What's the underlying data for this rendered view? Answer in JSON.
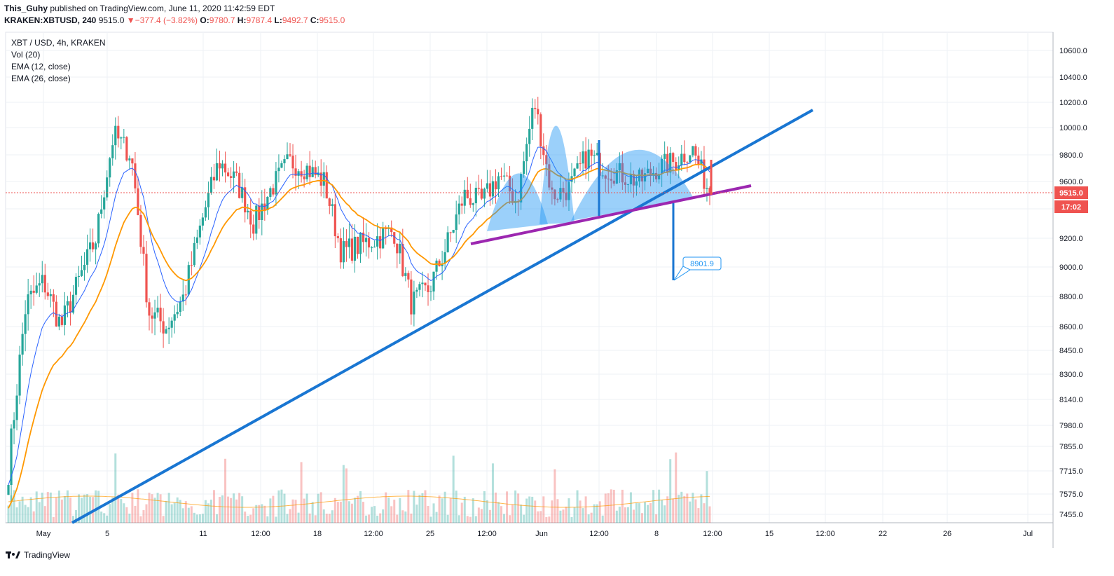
{
  "header": {
    "user": "This_Guhy",
    "published": " published on TradingView.com, June 11, 2020 11:42:59 EDT",
    "symbol": "KRAKEN:XBTUSD, 240",
    "last": "9515.0",
    "change": "−377.4 (−3.82%)",
    "o_label": "O:",
    "o_val": "9780.7",
    "h_label": "H:",
    "h_val": "9787.4",
    "l_label": "L:",
    "l_val": "9492.7",
    "c_label": "C:",
    "c_val": "9515.0"
  },
  "legend": {
    "line1": "XBT / USD, 4h, KRAKEN",
    "line2": "Vol (20)",
    "line3": "EMA (12, close)",
    "line4": "EMA (26, close)"
  },
  "footer": {
    "brand": "TradingView"
  },
  "chart_data": {
    "type": "candlestick",
    "title": "XBT / USD, 4h, KRAKEN",
    "price_ticks": [
      10600.0,
      10400.0,
      10200.0,
      10000.0,
      9800.0,
      9600.0,
      9400.0,
      9200.0,
      9000.0,
      8800.0,
      8600.0,
      8450.0,
      8300.0,
      8140.0,
      7980.0,
      7855.0,
      7715.0,
      7575.0,
      7455.0
    ],
    "x_ticks": [
      "May",
      "5",
      "11",
      "12:00",
      "18",
      "12:00",
      "25",
      "12:00",
      "Jun",
      "12:00",
      "8",
      "12:00",
      "15",
      "12:00",
      "22",
      "26",
      "Jul"
    ],
    "last_price_label": "9515.0",
    "countdown_label": "17:02",
    "target_label": "8901.9",
    "colors": {
      "up": "#26a69a",
      "down": "#ef5350",
      "ema12": "#2962ff",
      "ema26": "#ff9800",
      "trendline": "#1976d2",
      "neckline": "#9c27b0",
      "pattern": "#2196f3"
    },
    "price_path": [
      [
        "Apr 30",
        7720
      ],
      [
        "May 1",
        8750
      ],
      [
        "May 2",
        8900
      ],
      [
        "May 4",
        8600
      ],
      [
        "May 5",
        8900
      ],
      [
        "May 7",
        9200
      ],
      [
        "May 8",
        9950
      ],
      [
        "May 9",
        9800
      ],
      [
        "May 10",
        8700
      ],
      [
        "May 11",
        8600
      ],
      [
        "May 12",
        8800
      ],
      [
        "May 13",
        9300
      ],
      [
        "May 14",
        9750
      ],
      [
        "May 15",
        9600
      ],
      [
        "May 16",
        9300
      ],
      [
        "May 17",
        9550
      ],
      [
        "May 18",
        9750
      ],
      [
        "May 19",
        9700
      ],
      [
        "May 20",
        9600
      ],
      [
        "May 21",
        9100
      ],
      [
        "May 22",
        9150
      ],
      [
        "May 23",
        9200
      ],
      [
        "May 24",
        9250
      ],
      [
        "May 25",
        8750
      ],
      [
        "May 26",
        8850
      ],
      [
        "May 27",
        9150
      ],
      [
        "May 28",
        9500
      ],
      [
        "May 29",
        9450
      ],
      [
        "May 30",
        9650
      ],
      [
        "May 31",
        9450
      ],
      [
        "Jun 1",
        10200
      ],
      [
        "Jun 2",
        9500
      ],
      [
        "Jun 3",
        9550
      ],
      [
        "Jun 4",
        9800
      ],
      [
        "Jun 5",
        9700
      ],
      [
        "Jun 6",
        9650
      ],
      [
        "Jun 7",
        9600
      ],
      [
        "Jun 8",
        9700
      ],
      [
        "Jun 9",
        9750
      ],
      [
        "Jun 10",
        9850
      ],
      [
        "Jun 11",
        9515
      ]
    ]
  }
}
